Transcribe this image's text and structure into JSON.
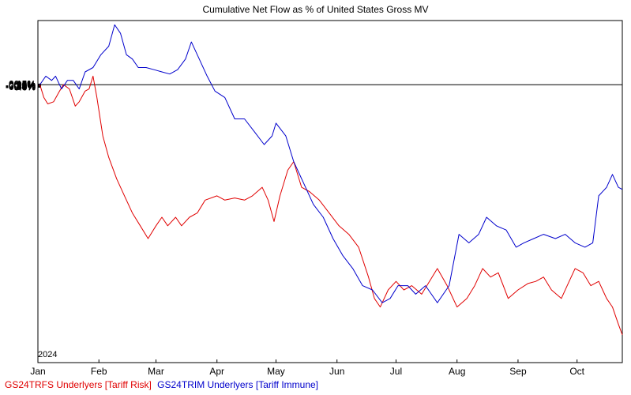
{
  "chart_data": {
    "type": "line",
    "title": "Cumulative Net Flow as % of United States Gross MV",
    "year_label": "2024",
    "ylim": [
      -0.65,
      0.15
    ],
    "y_ticks": [
      "0.15%",
      "0.1%",
      "0.05%",
      "0%",
      "-0.05%",
      "-0.1%",
      "-0.15%",
      "-0.2%",
      "-0.25%",
      "-0.3%",
      "-0.35%",
      "-0.4%",
      "-0.45%",
      "-0.5%",
      "-0.55%",
      "-0.6%"
    ],
    "x_ticks": [
      "Jan",
      "Feb",
      "Mar",
      "Apr",
      "May",
      "Jun",
      "Jul",
      "Aug",
      "Sep",
      "Oct"
    ],
    "x_range": [
      "2024-01-02",
      "2024-10-24"
    ],
    "zero_line": true,
    "grid": false,
    "legend_position": "bottom-left",
    "series": [
      {
        "name": "GS24TRFS Underlyers [Tariff Risk]",
        "color": "#e00000",
        "points": [
          [
            "2024-01-02",
            0.0
          ],
          [
            "2024-01-04",
            -0.03
          ],
          [
            "2024-01-06",
            -0.045
          ],
          [
            "2024-01-09",
            -0.04
          ],
          [
            "2024-01-12",
            -0.015
          ],
          [
            "2024-01-14",
            0.0
          ],
          [
            "2024-01-17",
            -0.01
          ],
          [
            "2024-01-20",
            -0.05
          ],
          [
            "2024-01-22",
            -0.04
          ],
          [
            "2024-01-25",
            -0.015
          ],
          [
            "2024-01-27",
            -0.01
          ],
          [
            "2024-01-29",
            0.02
          ],
          [
            "2024-01-31",
            -0.03
          ],
          [
            "2024-02-03",
            -0.12
          ],
          [
            "2024-02-06",
            -0.17
          ],
          [
            "2024-02-10",
            -0.22
          ],
          [
            "2024-02-14",
            -0.26
          ],
          [
            "2024-02-18",
            -0.3
          ],
          [
            "2024-02-22",
            -0.33
          ],
          [
            "2024-02-26",
            -0.36
          ],
          [
            "2024-03-01",
            -0.33
          ],
          [
            "2024-03-04",
            -0.31
          ],
          [
            "2024-03-07",
            -0.33
          ],
          [
            "2024-03-11",
            -0.31
          ],
          [
            "2024-03-14",
            -0.33
          ],
          [
            "2024-03-18",
            -0.31
          ],
          [
            "2024-03-22",
            -0.3
          ],
          [
            "2024-03-26",
            -0.27
          ],
          [
            "2024-04-01",
            -0.26
          ],
          [
            "2024-04-05",
            -0.27
          ],
          [
            "2024-04-10",
            -0.265
          ],
          [
            "2024-04-15",
            -0.27
          ],
          [
            "2024-04-19",
            -0.26
          ],
          [
            "2024-04-24",
            -0.24
          ],
          [
            "2024-04-27",
            -0.27
          ],
          [
            "2024-04-30",
            -0.32
          ],
          [
            "2024-05-03",
            -0.26
          ],
          [
            "2024-05-07",
            -0.2
          ],
          [
            "2024-05-10",
            -0.18
          ],
          [
            "2024-05-14",
            -0.24
          ],
          [
            "2024-05-18",
            -0.25
          ],
          [
            "2024-05-23",
            -0.27
          ],
          [
            "2024-05-28",
            -0.3
          ],
          [
            "2024-06-02",
            -0.33
          ],
          [
            "2024-06-07",
            -0.35
          ],
          [
            "2024-06-12",
            -0.38
          ],
          [
            "2024-06-17",
            -0.45
          ],
          [
            "2024-06-20",
            -0.5
          ],
          [
            "2024-06-23",
            -0.52
          ],
          [
            "2024-06-27",
            -0.48
          ],
          [
            "2024-07-01",
            -0.46
          ],
          [
            "2024-07-05",
            -0.48
          ],
          [
            "2024-07-09",
            -0.47
          ],
          [
            "2024-07-14",
            -0.49
          ],
          [
            "2024-07-18",
            -0.46
          ],
          [
            "2024-07-22",
            -0.43
          ],
          [
            "2024-07-27",
            -0.47
          ],
          [
            "2024-08-01",
            -0.52
          ],
          [
            "2024-08-06",
            -0.5
          ],
          [
            "2024-08-10",
            -0.47
          ],
          [
            "2024-08-14",
            -0.43
          ],
          [
            "2024-08-18",
            -0.45
          ],
          [
            "2024-08-22",
            -0.44
          ],
          [
            "2024-08-27",
            -0.5
          ],
          [
            "2024-09-01",
            -0.48
          ],
          [
            "2024-09-06",
            -0.465
          ],
          [
            "2024-09-10",
            -0.46
          ],
          [
            "2024-09-14",
            -0.45
          ],
          [
            "2024-09-18",
            -0.48
          ],
          [
            "2024-09-23",
            -0.5
          ],
          [
            "2024-09-26",
            -0.47
          ],
          [
            "2024-09-30",
            -0.43
          ],
          [
            "2024-10-04",
            -0.44
          ],
          [
            "2024-10-08",
            -0.47
          ],
          [
            "2024-10-12",
            -0.46
          ],
          [
            "2024-10-16",
            -0.5
          ],
          [
            "2024-10-19",
            -0.52
          ],
          [
            "2024-10-22",
            -0.56
          ],
          [
            "2024-10-24",
            -0.585
          ]
        ]
      },
      {
        "name": "GS24TRIM Underlyers [Tariff Immune]",
        "color": "#0000cc",
        "points": [
          [
            "2024-01-02",
            0.0
          ],
          [
            "2024-01-05",
            0.02
          ],
          [
            "2024-01-08",
            0.01
          ],
          [
            "2024-01-10",
            0.02
          ],
          [
            "2024-01-13",
            -0.01
          ],
          [
            "2024-01-16",
            0.01
          ],
          [
            "2024-01-19",
            0.01
          ],
          [
            "2024-01-22",
            -0.01
          ],
          [
            "2024-01-25",
            0.03
          ],
          [
            "2024-01-29",
            0.04
          ],
          [
            "2024-02-02",
            0.07
          ],
          [
            "2024-02-06",
            0.09
          ],
          [
            "2024-02-09",
            0.14
          ],
          [
            "2024-02-12",
            0.12
          ],
          [
            "2024-02-15",
            0.07
          ],
          [
            "2024-02-18",
            0.06
          ],
          [
            "2024-02-21",
            0.04
          ],
          [
            "2024-02-25",
            0.04
          ],
          [
            "2024-02-29",
            0.035
          ],
          [
            "2024-03-04",
            0.03
          ],
          [
            "2024-03-08",
            0.025
          ],
          [
            "2024-03-12",
            0.035
          ],
          [
            "2024-03-16",
            0.06
          ],
          [
            "2024-03-19",
            0.1
          ],
          [
            "2024-03-23",
            0.06
          ],
          [
            "2024-03-27",
            0.02
          ],
          [
            "2024-03-31",
            -0.015
          ],
          [
            "2024-04-05",
            -0.03
          ],
          [
            "2024-04-10",
            -0.08
          ],
          [
            "2024-04-15",
            -0.08
          ],
          [
            "2024-04-20",
            -0.11
          ],
          [
            "2024-04-25",
            -0.14
          ],
          [
            "2024-04-29",
            -0.12
          ],
          [
            "2024-05-01",
            -0.09
          ],
          [
            "2024-05-06",
            -0.12
          ],
          [
            "2024-05-10",
            -0.18
          ],
          [
            "2024-05-15",
            -0.23
          ],
          [
            "2024-05-20",
            -0.28
          ],
          [
            "2024-05-25",
            -0.31
          ],
          [
            "2024-05-30",
            -0.36
          ],
          [
            "2024-06-04",
            -0.4
          ],
          [
            "2024-06-09",
            -0.43
          ],
          [
            "2024-06-14",
            -0.47
          ],
          [
            "2024-06-19",
            -0.48
          ],
          [
            "2024-06-24",
            -0.51
          ],
          [
            "2024-06-28",
            -0.5
          ],
          [
            "2024-07-02",
            -0.47
          ],
          [
            "2024-07-07",
            -0.47
          ],
          [
            "2024-07-11",
            -0.49
          ],
          [
            "2024-07-16",
            -0.47
          ],
          [
            "2024-07-22",
            -0.51
          ],
          [
            "2024-07-28",
            -0.47
          ],
          [
            "2024-08-02",
            -0.35
          ],
          [
            "2024-08-07",
            -0.37
          ],
          [
            "2024-08-12",
            -0.35
          ],
          [
            "2024-08-16",
            -0.31
          ],
          [
            "2024-08-21",
            -0.33
          ],
          [
            "2024-08-26",
            -0.34
          ],
          [
            "2024-08-31",
            -0.38
          ],
          [
            "2024-09-04",
            -0.37
          ],
          [
            "2024-09-09",
            -0.36
          ],
          [
            "2024-09-14",
            -0.35
          ],
          [
            "2024-09-20",
            -0.36
          ],
          [
            "2024-09-25",
            -0.35
          ],
          [
            "2024-09-30",
            -0.37
          ],
          [
            "2024-10-05",
            -0.38
          ],
          [
            "2024-10-09",
            -0.37
          ],
          [
            "2024-10-12",
            -0.26
          ],
          [
            "2024-10-16",
            -0.24
          ],
          [
            "2024-10-19",
            -0.21
          ],
          [
            "2024-10-22",
            -0.24
          ],
          [
            "2024-10-24",
            -0.245
          ]
        ]
      }
    ]
  }
}
